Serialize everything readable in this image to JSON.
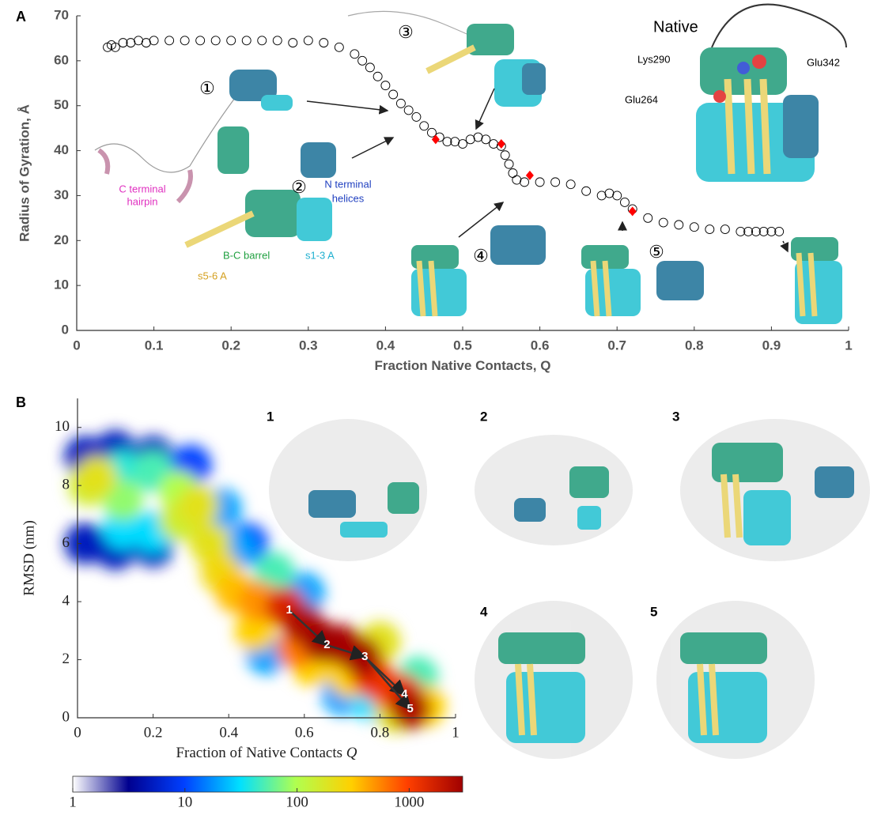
{
  "chart_data": [
    {
      "type": "scatter",
      "panel": "A",
      "ylabel": "Radius of Gyration, Å",
      "xlabel": "Fraction Native Contacts, Q",
      "xlim": [
        0,
        1
      ],
      "ylim": [
        0,
        70
      ],
      "xticks": [
        0,
        0.1,
        0.2,
        0.3,
        0.4,
        0.5,
        0.6,
        0.7,
        0.8,
        0.9,
        1
      ],
      "yticks": [
        0,
        10,
        20,
        30,
        40,
        50,
        60,
        70
      ],
      "marker_color": "#000000",
      "highlight_color": "#ff0000",
      "x": [
        0.04,
        0.045,
        0.05,
        0.06,
        0.07,
        0.08,
        0.09,
        0.1,
        0.12,
        0.14,
        0.16,
        0.18,
        0.2,
        0.22,
        0.24,
        0.26,
        0.28,
        0.3,
        0.32,
        0.34,
        0.36,
        0.37,
        0.38,
        0.39,
        0.4,
        0.41,
        0.42,
        0.43,
        0.44,
        0.45,
        0.46,
        0.47,
        0.48,
        0.49,
        0.5,
        0.51,
        0.52,
        0.53,
        0.54,
        0.55,
        0.555,
        0.56,
        0.565,
        0.57,
        0.58,
        0.6,
        0.62,
        0.64,
        0.66,
        0.68,
        0.69,
        0.7,
        0.71,
        0.72,
        0.74,
        0.76,
        0.78,
        0.8,
        0.82,
        0.84,
        0.86,
        0.87,
        0.88,
        0.89,
        0.9,
        0.91
      ],
      "y": [
        63,
        63.5,
        63,
        64,
        64,
        64.5,
        64,
        64.5,
        64.5,
        64.5,
        64.5,
        64.5,
        64.5,
        64.5,
        64.5,
        64.5,
        64,
        64.5,
        64,
        63,
        61.5,
        60,
        58.5,
        56.5,
        54.5,
        52.5,
        50.5,
        49,
        47.5,
        45.5,
        44,
        43,
        42,
        42,
        41.5,
        42.5,
        43,
        42.5,
        41.5,
        41,
        39,
        37,
        35,
        33.5,
        33,
        33,
        33,
        32.5,
        31,
        30,
        30.5,
        30,
        28.5,
        27,
        25,
        24,
        23.5,
        23,
        22.5,
        22.5,
        22,
        22,
        22,
        22,
        22,
        22
      ],
      "highlight": {
        "x": [
          0.465,
          0.55,
          0.587,
          0.72
        ],
        "y": [
          42.5,
          41.5,
          34.5,
          26.5
        ]
      },
      "annotations": [
        "Native",
        "Lys290",
        "Glu342",
        "Glu264",
        "C terminal",
        "hairpin",
        "s5-6 A",
        "B-C barrel",
        "s1-3 A",
        "N terminal",
        "helices",
        "①",
        "②",
        "③",
        "④",
        "⑤"
      ]
    },
    {
      "type": "heatmap",
      "panel": "B",
      "ylabel": "RMSD (nm)",
      "xlabel": "Fraction of Native Contacts",
      "xlabel_symbol": "Q",
      "xlim": [
        0,
        1
      ],
      "ylim": [
        0,
        11
      ],
      "xticks": [
        0,
        0.2,
        0.4,
        0.6,
        0.8,
        1
      ],
      "yticks": [
        0,
        2,
        4,
        6,
        8,
        10
      ],
      "log_color": true,
      "clim": [
        1,
        3000
      ],
      "cticks": [
        1,
        10,
        100,
        1000
      ],
      "colormap": [
        "#ffffff",
        "#00008f",
        "#0040ff",
        "#00e0ff",
        "#b0ff50",
        "#ffd000",
        "#ff4000",
        "#a00000"
      ],
      "x": [
        0.02,
        0.1,
        0.2,
        0.02,
        0.1,
        0.2,
        0.3,
        0.45,
        0.38,
        0.42,
        0.7,
        0.5,
        0.6,
        0.78,
        0.12,
        0.12,
        0.2,
        0.9,
        0.52,
        0.2,
        0.27,
        0.12,
        0.03,
        0.27,
        0.05,
        0.32,
        0.35,
        0.84,
        0.38,
        0.8,
        0.47,
        0.62,
        0.72,
        0.92,
        0.42,
        0.48,
        0.58,
        0.82,
        0.78,
        0.86,
        0.55,
        0.7,
        0.6,
        0.88,
        0.75,
        0.65
      ],
      "y": [
        9,
        9.2,
        9,
        6,
        5.8,
        5.9,
        8.7,
        6,
        7.2,
        5.8,
        0.8,
        2.2,
        4.3,
        0.6,
        6.5,
        8.5,
        6.4,
        1.4,
        5,
        8.5,
        7.8,
        7.5,
        8,
        6.8,
        8.3,
        7.3,
        6,
        0.2,
        5,
        2.6,
        3,
        1.8,
        1.4,
        0.4,
        4.3,
        4,
        2.4,
        1,
        1.4,
        0.8,
        3.8,
        2.5,
        3.2,
        0.3,
        2.1,
        2.6
      ],
      "values": [
        5,
        5,
        5,
        5,
        5,
        5,
        10,
        10,
        20,
        20,
        20,
        20,
        20,
        30,
        30,
        40,
        30,
        50,
        50,
        50,
        100,
        80,
        150,
        150,
        200,
        200,
        200,
        200,
        250,
        200,
        300,
        300,
        300,
        300,
        350,
        500,
        600,
        600,
        1200,
        1200,
        1500,
        2500,
        2500,
        2500,
        2800,
        3000
      ],
      "states": {
        "labels": [
          "1",
          "2",
          "3",
          "4",
          "5"
        ],
        "x": [
          0.56,
          0.66,
          0.76,
          0.865,
          0.88
        ],
        "y": [
          3.7,
          2.5,
          2.1,
          0.8,
          0.3
        ]
      },
      "structure_labels": [
        "1",
        "2",
        "3",
        "4",
        "5"
      ]
    }
  ]
}
